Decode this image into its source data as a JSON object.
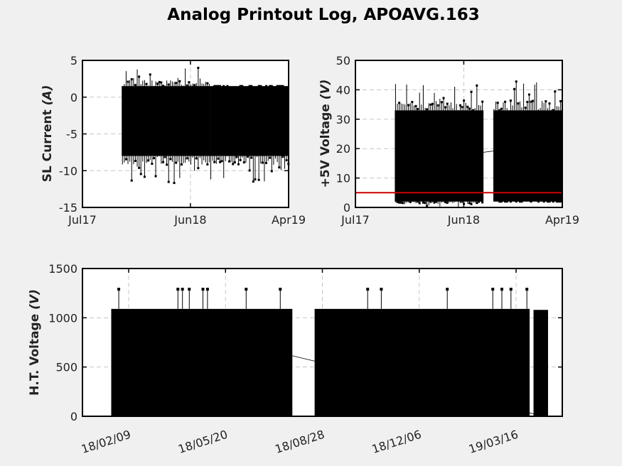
{
  "figure": {
    "title": "Analog Printout Log, APOAVG.163"
  },
  "colors": {
    "data": "#000000",
    "threshold": "#cc0000",
    "grid": "#c8c8c8",
    "background": "#f0f0f0"
  },
  "chart_data": [
    {
      "type": "line",
      "ylabel": "SL Current",
      "yunit": "(A)",
      "ylim": [
        -15,
        5
      ],
      "yticks": [
        5,
        0,
        -5,
        -10,
        -15
      ],
      "xticks": [
        "Jul17",
        "Jun18",
        "Apr19"
      ],
      "grid": true,
      "series": [
        {
          "segments": [
            {
              "start": "Nov17",
              "end": "Aug18",
              "typical_range": [
                -8,
                1.5
              ],
              "min": -12,
              "max": 4
            },
            {
              "start": "Aug18",
              "end": "Apr19",
              "typical_range": [
                -8,
                1.5
              ],
              "min": -12,
              "max": 1.5
            }
          ]
        }
      ]
    },
    {
      "type": "line",
      "ylabel": "+5V Voltage",
      "yunit": "(V)",
      "ylim": [
        0,
        50
      ],
      "yticks": [
        50,
        40,
        30,
        20,
        10,
        0
      ],
      "xticks": [
        "Jul17",
        "Jun18",
        "Apr19"
      ],
      "grid": true,
      "threshold": 5,
      "series": [
        {
          "segments": [
            {
              "start": "Nov17",
              "end": "Aug18",
              "typical_range": [
                2,
                33
              ],
              "min": 0,
              "max": 42
            },
            {
              "start": "Sep18",
              "end": "Apr19",
              "typical_range": [
                2,
                33
              ],
              "min": 2,
              "max": 43
            }
          ]
        }
      ]
    },
    {
      "type": "line",
      "ylabel": "H.T. Voltage",
      "yunit": "(V)",
      "ylim": [
        0,
        1500
      ],
      "yticks": [
        1500,
        1000,
        500,
        0
      ],
      "xticks": [
        "18/02/09",
        "18/05/20",
        "18/08/28",
        "18/12/06",
        "19/03/16"
      ],
      "grid": true,
      "series": [
        {
          "segments": [
            {
              "start": "18/01/22",
              "end": "18/07/28",
              "typical_range": [
                0,
                1090
              ],
              "spikes": 1290
            },
            {
              "start": "18/08/20",
              "end": "19/03/30",
              "typical_range": [
                0,
                1090
              ],
              "spikes": 1290
            },
            {
              "start": "19/04/03",
              "end": "19/04/18",
              "typical_range": [
                0,
                1080
              ],
              "spikes": 1290
            }
          ]
        }
      ]
    }
  ]
}
